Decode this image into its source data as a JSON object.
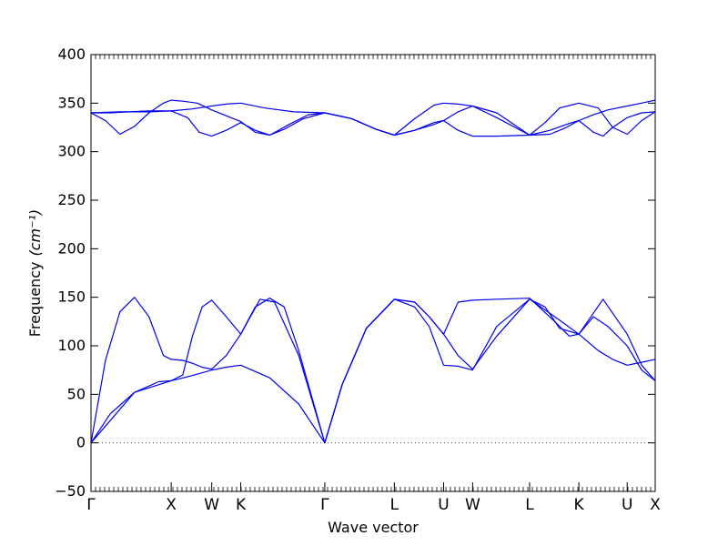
{
  "chart_data": {
    "type": "line",
    "title": "",
    "xlabel": "Wave vector",
    "ylabel": "Frequency",
    "ylabel_unit": "(cm⁻¹)",
    "ylim": [
      -50,
      400
    ],
    "yticks": [
      -50,
      0,
      50,
      100,
      150,
      200,
      250,
      300,
      350,
      400
    ],
    "xlim": [
      0,
      5.84
    ],
    "kpoints": [
      {
        "label": "Γ",
        "x": 0.0
      },
      {
        "label": "X",
        "x": 0.83
      },
      {
        "label": "W",
        "x": 1.25
      },
      {
        "label": "K",
        "x": 1.55
      },
      {
        "label": "Γ",
        "x": 2.42
      },
      {
        "label": "L",
        "x": 3.14
      },
      {
        "label": "U",
        "x": 3.65
      },
      {
        "label": "W",
        "x": 3.95
      },
      {
        "label": "L",
        "x": 4.54
      },
      {
        "label": "K",
        "x": 5.05
      },
      {
        "label": "U",
        "x": 5.55
      },
      {
        "label": "X",
        "x": 5.84
      }
    ],
    "zero_line": true,
    "line_color": "#0000ee",
    "branches": [
      {
        "x": [
          0,
          0.2,
          0.45,
          0.7,
          0.83,
          1.0,
          1.25,
          1.4,
          1.55,
          1.85,
          2.15,
          2.42,
          2.6,
          2.85,
          3.14,
          3.35,
          3.5,
          3.65,
          3.8,
          3.95,
          4.2,
          4.54,
          4.8,
          5.05,
          5.25,
          5.4,
          5.55,
          5.7,
          5.84
        ],
        "y": [
          0,
          30,
          52,
          63,
          64,
          68,
          75,
          78,
          80,
          67,
          40,
          0,
          60,
          118,
          148,
          140,
          120,
          80,
          79,
          75,
          120,
          148,
          130,
          112,
          95,
          86,
          80,
          83,
          86
        ]
      },
      {
        "x": [
          0,
          0.15,
          0.3,
          0.45,
          0.6,
          0.75,
          0.83,
          0.95,
          1.05,
          1.15,
          1.25,
          1.4,
          1.55,
          1.75,
          1.9,
          2.15,
          2.42,
          2.6,
          2.85,
          3.14,
          3.35,
          3.5,
          3.65,
          3.8,
          3.95,
          4.2,
          4.54,
          4.7,
          4.85,
          5.05,
          5.3,
          5.55,
          5.7,
          5.84
        ],
        "y": [
          0,
          85,
          135,
          150,
          130,
          90,
          86,
          85,
          82,
          78,
          76,
          90,
          112,
          148,
          145,
          90,
          0,
          60,
          118,
          148,
          145,
          130,
          112,
          90,
          76,
          110,
          148,
          140,
          118,
          112,
          148,
          112,
          80,
          64
        ]
      },
      {
        "x": [
          0,
          0.45,
          0.83,
          0.95,
          1.05,
          1.15,
          1.25,
          1.4,
          1.55,
          1.7,
          1.85,
          2.0,
          2.15,
          2.42,
          2.6,
          2.85,
          3.14,
          3.35,
          3.5,
          3.65,
          3.8,
          3.95,
          4.2,
          4.54,
          4.8,
          4.95,
          5.05,
          5.2,
          5.35,
          5.55,
          5.7,
          5.84
        ],
        "y": [
          0,
          52,
          64,
          70,
          110,
          140,
          147,
          130,
          112,
          140,
          149,
          140,
          95,
          0,
          60,
          118,
          148,
          145,
          130,
          112,
          145,
          147,
          148,
          149,
          125,
          110,
          112,
          130,
          120,
          100,
          75,
          64
        ]
      },
      {
        "x": [
          0,
          0.2,
          0.4,
          0.6,
          0.83,
          1.05,
          1.25,
          1.4,
          1.55,
          1.8,
          2.1,
          2.42,
          2.7,
          2.95,
          3.14,
          3.35,
          3.55,
          3.65,
          3.8,
          3.95,
          4.2,
          4.54,
          4.75,
          4.9,
          5.05,
          5.2,
          5.35,
          5.55,
          5.7,
          5.84
        ],
        "y": [
          340,
          340,
          341,
          342,
          342,
          344,
          347,
          349,
          350,
          345,
          341,
          340,
          334,
          323,
          317,
          322,
          328,
          332,
          341,
          347,
          340,
          317,
          318,
          324,
          332,
          338,
          343,
          347,
          350,
          353
        ]
      },
      {
        "x": [
          0,
          0.15,
          0.3,
          0.45,
          0.6,
          0.75,
          0.83,
          0.95,
          1.1,
          1.25,
          1.4,
          1.55,
          1.7,
          1.85,
          2.0,
          2.2,
          2.42,
          2.7,
          2.95,
          3.14,
          3.35,
          3.55,
          3.65,
          3.8,
          3.95,
          4.2,
          4.54,
          4.7,
          4.85,
          5.05,
          5.25,
          5.4,
          5.55,
          5.7,
          5.84
        ],
        "y": [
          340,
          332,
          318,
          326,
          340,
          350,
          353,
          352,
          350,
          343,
          337,
          331,
          320,
          317,
          323,
          334,
          340,
          334,
          323,
          317,
          334,
          348,
          350,
          349,
          347,
          335,
          317,
          330,
          345,
          350,
          345,
          325,
          318,
          332,
          341
        ]
      },
      {
        "x": [
          0,
          0.3,
          0.6,
          0.83,
          1.0,
          1.12,
          1.25,
          1.4,
          1.55,
          1.7,
          1.85,
          2.05,
          2.25,
          2.42,
          2.7,
          2.95,
          3.14,
          3.35,
          3.55,
          3.65,
          3.8,
          3.95,
          4.2,
          4.54,
          4.75,
          4.95,
          5.05,
          5.2,
          5.3,
          5.4,
          5.55,
          5.7,
          5.84
        ],
        "y": [
          340,
          341,
          341,
          342,
          335,
          320,
          316,
          322,
          330,
          322,
          317,
          328,
          338,
          340,
          334,
          323,
          317,
          322,
          330,
          332,
          322,
          316,
          316,
          317,
          322,
          329,
          332,
          320,
          316,
          325,
          335,
          340,
          341
        ]
      }
    ]
  }
}
